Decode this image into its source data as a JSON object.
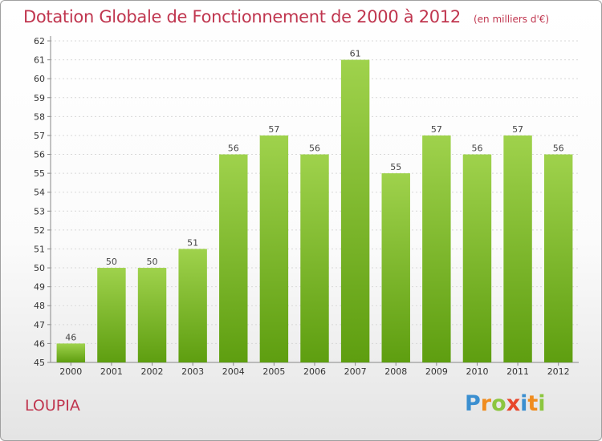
{
  "title": "Dotation Globale de Fonctionnement de 2000 à 2012",
  "unit": "(en milliers d'€)",
  "commune": "LOUPIA",
  "logo": {
    "text": "Proxiti",
    "letters": [
      {
        "char": "P",
        "color": "#3b8fd0"
      },
      {
        "char": "r",
        "color": "#f08c1e"
      },
      {
        "char": "o",
        "color": "#8cc63f"
      },
      {
        "char": "x",
        "color": "#e8472b"
      },
      {
        "char": "i",
        "color": "#3b8fd0"
      },
      {
        "char": "t",
        "color": "#f08c1e"
      },
      {
        "char": "i",
        "color": "#8cc63f"
      }
    ]
  },
  "colors": {
    "title": "#c0364f",
    "bar_top": "#9fd24c",
    "bar_bottom": "#5e9e10",
    "grid": "#d8d8d8"
  },
  "chart_data": {
    "type": "bar",
    "title": "Dotation Globale de Fonctionnement de 2000 à 2012",
    "categories": [
      "2000",
      "2001",
      "2002",
      "2003",
      "2004",
      "2005",
      "2006",
      "2007",
      "2008",
      "2009",
      "2010",
      "2011",
      "2012"
    ],
    "values": [
      46,
      50,
      50,
      51,
      56,
      57,
      56,
      61,
      55,
      57,
      56,
      57,
      56
    ],
    "ylim": [
      45,
      62
    ],
    "yticks": [
      45,
      46,
      47,
      48,
      49,
      50,
      51,
      52,
      53,
      54,
      55,
      56,
      57,
      58,
      59,
      60,
      61,
      62
    ],
    "grid": true,
    "data_labels": true,
    "xlabel": "",
    "ylabel": ""
  }
}
